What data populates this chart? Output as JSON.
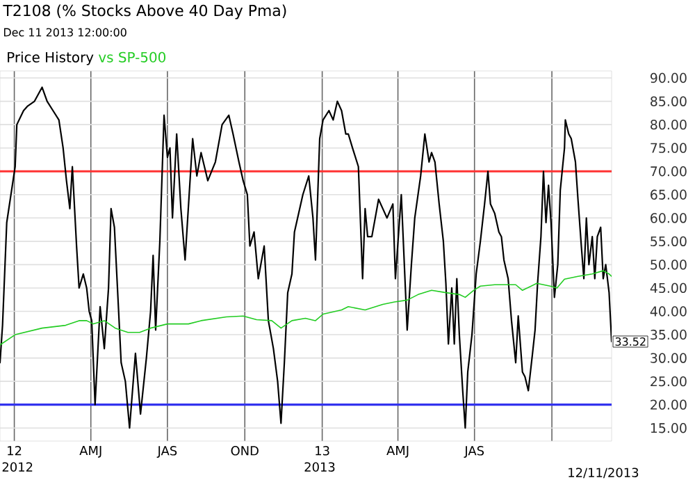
{
  "chart_data": {
    "type": "line",
    "title": "T2108 (% Stocks Above 40 Day Pma)",
    "subtitle": "Dec 11 2013 12:00:00",
    "xlim": [
      "2011-12-15",
      "2013-12-11"
    ],
    "xticks": [
      {
        "value": "2012-01-01",
        "label": "12"
      },
      {
        "value": "2012-04-01",
        "label": "AMJ"
      },
      {
        "value": "2012-07-01",
        "label": "JAS"
      },
      {
        "value": "2012-10-01",
        "label": "OND"
      },
      {
        "value": "2013-01-01",
        "label": "13"
      },
      {
        "value": "2013-04-01",
        "label": "AMJ"
      },
      {
        "value": "2013-07-01",
        "label": "JAS"
      },
      {
        "value": "2013-10-01",
        "label": null
      }
    ],
    "ylim": [
      12.2,
      91.5
    ],
    "yticks": [
      {
        "value": 15,
        "label": "15.00"
      },
      {
        "value": 20,
        "label": "20.00"
      },
      {
        "value": 25,
        "label": "25.00"
      },
      {
        "value": 30,
        "label": "30.00"
      },
      {
        "value": 35,
        "label": "35.00"
      },
      {
        "value": 40,
        "label": "40.00"
      },
      {
        "value": 45,
        "label": "45.00"
      },
      {
        "value": 50,
        "label": "50.00"
      },
      {
        "value": 55,
        "label": "55.00"
      },
      {
        "value": 60,
        "label": "60.00"
      },
      {
        "value": 65,
        "label": "65.00"
      },
      {
        "value": 70,
        "label": "70.00"
      },
      {
        "value": 75,
        "label": "75.00"
      },
      {
        "value": 80,
        "label": "80.00"
      },
      {
        "value": 85,
        "label": "85.00"
      },
      {
        "value": 90,
        "label": "90.00"
      }
    ],
    "grid": true,
    "ref_lines": [
      {
        "axis": "y",
        "value": 70,
        "color": "#ff3333"
      },
      {
        "axis": "y",
        "value": 20,
        "color": "#3333ee"
      }
    ],
    "annotations": [
      {
        "text": "33.52",
        "x": "2013-12-11",
        "y": 33.52
      },
      "2012",
      "2013",
      "12/11/2013"
    ],
    "series": [
      {
        "name": "Price History",
        "color": "#000000",
        "x": [
          "2011-12-15",
          "2011-12-18",
          "2011-12-23",
          "2011-12-28",
          "2012-01-02",
          "2012-01-04",
          "2012-01-12",
          "2012-01-17",
          "2012-01-25",
          "2012-02-03",
          "2012-02-09",
          "2012-02-16",
          "2012-02-23",
          "2012-02-28",
          "2012-03-03",
          "2012-03-07",
          "2012-03-10",
          "2012-03-15",
          "2012-03-18",
          "2012-03-23",
          "2012-03-27",
          "2012-03-30",
          "2012-04-02",
          "2012-04-06",
          "2012-04-12",
          "2012-04-17",
          "2012-04-22",
          "2012-04-25",
          "2012-04-29",
          "2012-05-04",
          "2012-05-07",
          "2012-05-12",
          "2012-05-17",
          "2012-05-24",
          "2012-05-30",
          "2012-06-06",
          "2012-06-11",
          "2012-06-14",
          "2012-06-17",
          "2012-06-22",
          "2012-06-27",
          "2012-07-01",
          "2012-07-04",
          "2012-07-07",
          "2012-07-12",
          "2012-07-17",
          "2012-07-22",
          "2012-07-31",
          "2012-08-05",
          "2012-08-10",
          "2012-08-18",
          "2012-08-27",
          "2012-09-04",
          "2012-09-12",
          "2012-09-17",
          "2012-09-24",
          "2012-09-29",
          "2012-10-04",
          "2012-10-07",
          "2012-10-12",
          "2012-10-17",
          "2012-10-24",
          "2012-10-29",
          "2012-11-04",
          "2012-11-09",
          "2012-11-13",
          "2012-11-17",
          "2012-11-21",
          "2012-11-26",
          "2012-11-29",
          "2012-12-09",
          "2012-12-16",
          "2012-12-21",
          "2012-12-24",
          "2012-12-29",
          "2013-01-02",
          "2013-01-09",
          "2013-01-14",
          "2013-01-19",
          "2013-01-24",
          "2013-01-29",
          "2013-02-01",
          "2013-02-06",
          "2013-02-13",
          "2013-02-18",
          "2013-02-21",
          "2013-02-24",
          "2013-03-01",
          "2013-03-09",
          "2013-03-14",
          "2013-03-19",
          "2013-03-26",
          "2013-03-29",
          "2013-04-05",
          "2013-04-12",
          "2013-04-17",
          "2013-04-21",
          "2013-04-28",
          "2013-05-03",
          "2013-05-08",
          "2013-05-11",
          "2013-05-15",
          "2013-05-20",
          "2013-05-25",
          "2013-05-28",
          "2013-05-31",
          "2013-06-04",
          "2013-06-07",
          "2013-06-10",
          "2013-06-13",
          "2013-06-17",
          "2013-06-20",
          "2013-06-23",
          "2013-06-28",
          "2013-07-03",
          "2013-07-08",
          "2013-07-13",
          "2013-07-17",
          "2013-07-20",
          "2013-07-25",
          "2013-07-30",
          "2013-08-02",
          "2013-08-05",
          "2013-08-10",
          "2013-08-14",
          "2013-08-19",
          "2013-08-22",
          "2013-08-27",
          "2013-08-30",
          "2013-09-03",
          "2013-09-08",
          "2013-09-11",
          "2013-09-14",
          "2013-09-18",
          "2013-09-21",
          "2013-09-24",
          "2013-09-27",
          "2013-09-30",
          "2013-10-04",
          "2013-10-08",
          "2013-10-11",
          "2013-10-16",
          "2013-10-17",
          "2013-10-21",
          "2013-10-24",
          "2013-10-29",
          "2013-11-01",
          "2013-11-05",
          "2013-11-08",
          "2013-11-11",
          "2013-11-14",
          "2013-11-18",
          "2013-11-21",
          "2013-11-24",
          "2013-11-28",
          "2013-12-01",
          "2013-12-04",
          "2013-12-08",
          "2013-12-11"
        ],
        "values": [
          29,
          37,
          59,
          65,
          71,
          80,
          83,
          84,
          85,
          88,
          85,
          83,
          81,
          75,
          68,
          62,
          71,
          54,
          45,
          48,
          45,
          40,
          38,
          20,
          41,
          32,
          45,
          62,
          58,
          40,
          29,
          25,
          15,
          31,
          18,
          30,
          40,
          52,
          36,
          55,
          82,
          73,
          75,
          60,
          78,
          62,
          51,
          77,
          69,
          74,
          68,
          72,
          80,
          82,
          78,
          72,
          68,
          65,
          54,
          57,
          47,
          54,
          38,
          32,
          25,
          16,
          29,
          44,
          48,
          57,
          65,
          69,
          60,
          51,
          77,
          81,
          83,
          81,
          85,
          83,
          78,
          78,
          75,
          71,
          47,
          62,
          56,
          56,
          64,
          62,
          60,
          63,
          47,
          65,
          36,
          50,
          60,
          69,
          78,
          72,
          74,
          72,
          63,
          55,
          46,
          33,
          45,
          33,
          47,
          35,
          23,
          15,
          27,
          35,
          48,
          55,
          63,
          70,
          63,
          61,
          57,
          56,
          51,
          47,
          38,
          29,
          39,
          27,
          26,
          23,
          31,
          36,
          46,
          56,
          70,
          59,
          67,
          59,
          43,
          50,
          66,
          75,
          81,
          78,
          77,
          72,
          64,
          54,
          47,
          60,
          50,
          56,
          47,
          56,
          58,
          47,
          50,
          44,
          33.52
        ]
      },
      {
        "name": "vs SP-500",
        "color": "#22cc22",
        "x": [
          "2011-12-15",
          "2012-01-02",
          "2012-02-03",
          "2012-03-02",
          "2012-03-18",
          "2012-03-27",
          "2012-04-04",
          "2012-04-17",
          "2012-04-30",
          "2012-05-15",
          "2012-05-29",
          "2012-06-11",
          "2012-07-01",
          "2012-07-26",
          "2012-08-10",
          "2012-09-09",
          "2012-09-29",
          "2012-10-15",
          "2012-11-02",
          "2012-11-13",
          "2012-11-26",
          "2012-12-12",
          "2012-12-24",
          "2013-01-02",
          "2013-01-24",
          "2013-02-01",
          "2013-02-21",
          "2013-03-14",
          "2013-03-28",
          "2013-04-12",
          "2013-04-25",
          "2013-05-11",
          "2013-05-28",
          "2013-06-13",
          "2013-06-20",
          "2013-06-30",
          "2013-07-08",
          "2013-07-25",
          "2013-08-19",
          "2013-08-27",
          "2013-09-13",
          "2013-09-29",
          "2013-10-07",
          "2013-10-16",
          "2013-11-01",
          "2013-11-18",
          "2013-12-01",
          "2013-12-08",
          "2013-12-11"
        ],
        "values": [
          32.8,
          35,
          36.4,
          37,
          38,
          38,
          37.3,
          38,
          36.4,
          35.5,
          35.5,
          36.4,
          37.3,
          37.3,
          38,
          38.8,
          39,
          38.2,
          38,
          36.4,
          38,
          38.5,
          38,
          39.4,
          40.3,
          41,
          40.3,
          41.5,
          42,
          42.4,
          43.6,
          44.5,
          44,
          43.6,
          43,
          44.5,
          45.4,
          45.7,
          45.7,
          44.5,
          46,
          45.4,
          45,
          46.9,
          47.5,
          48,
          48.7,
          48,
          47.5
        ]
      }
    ]
  }
}
